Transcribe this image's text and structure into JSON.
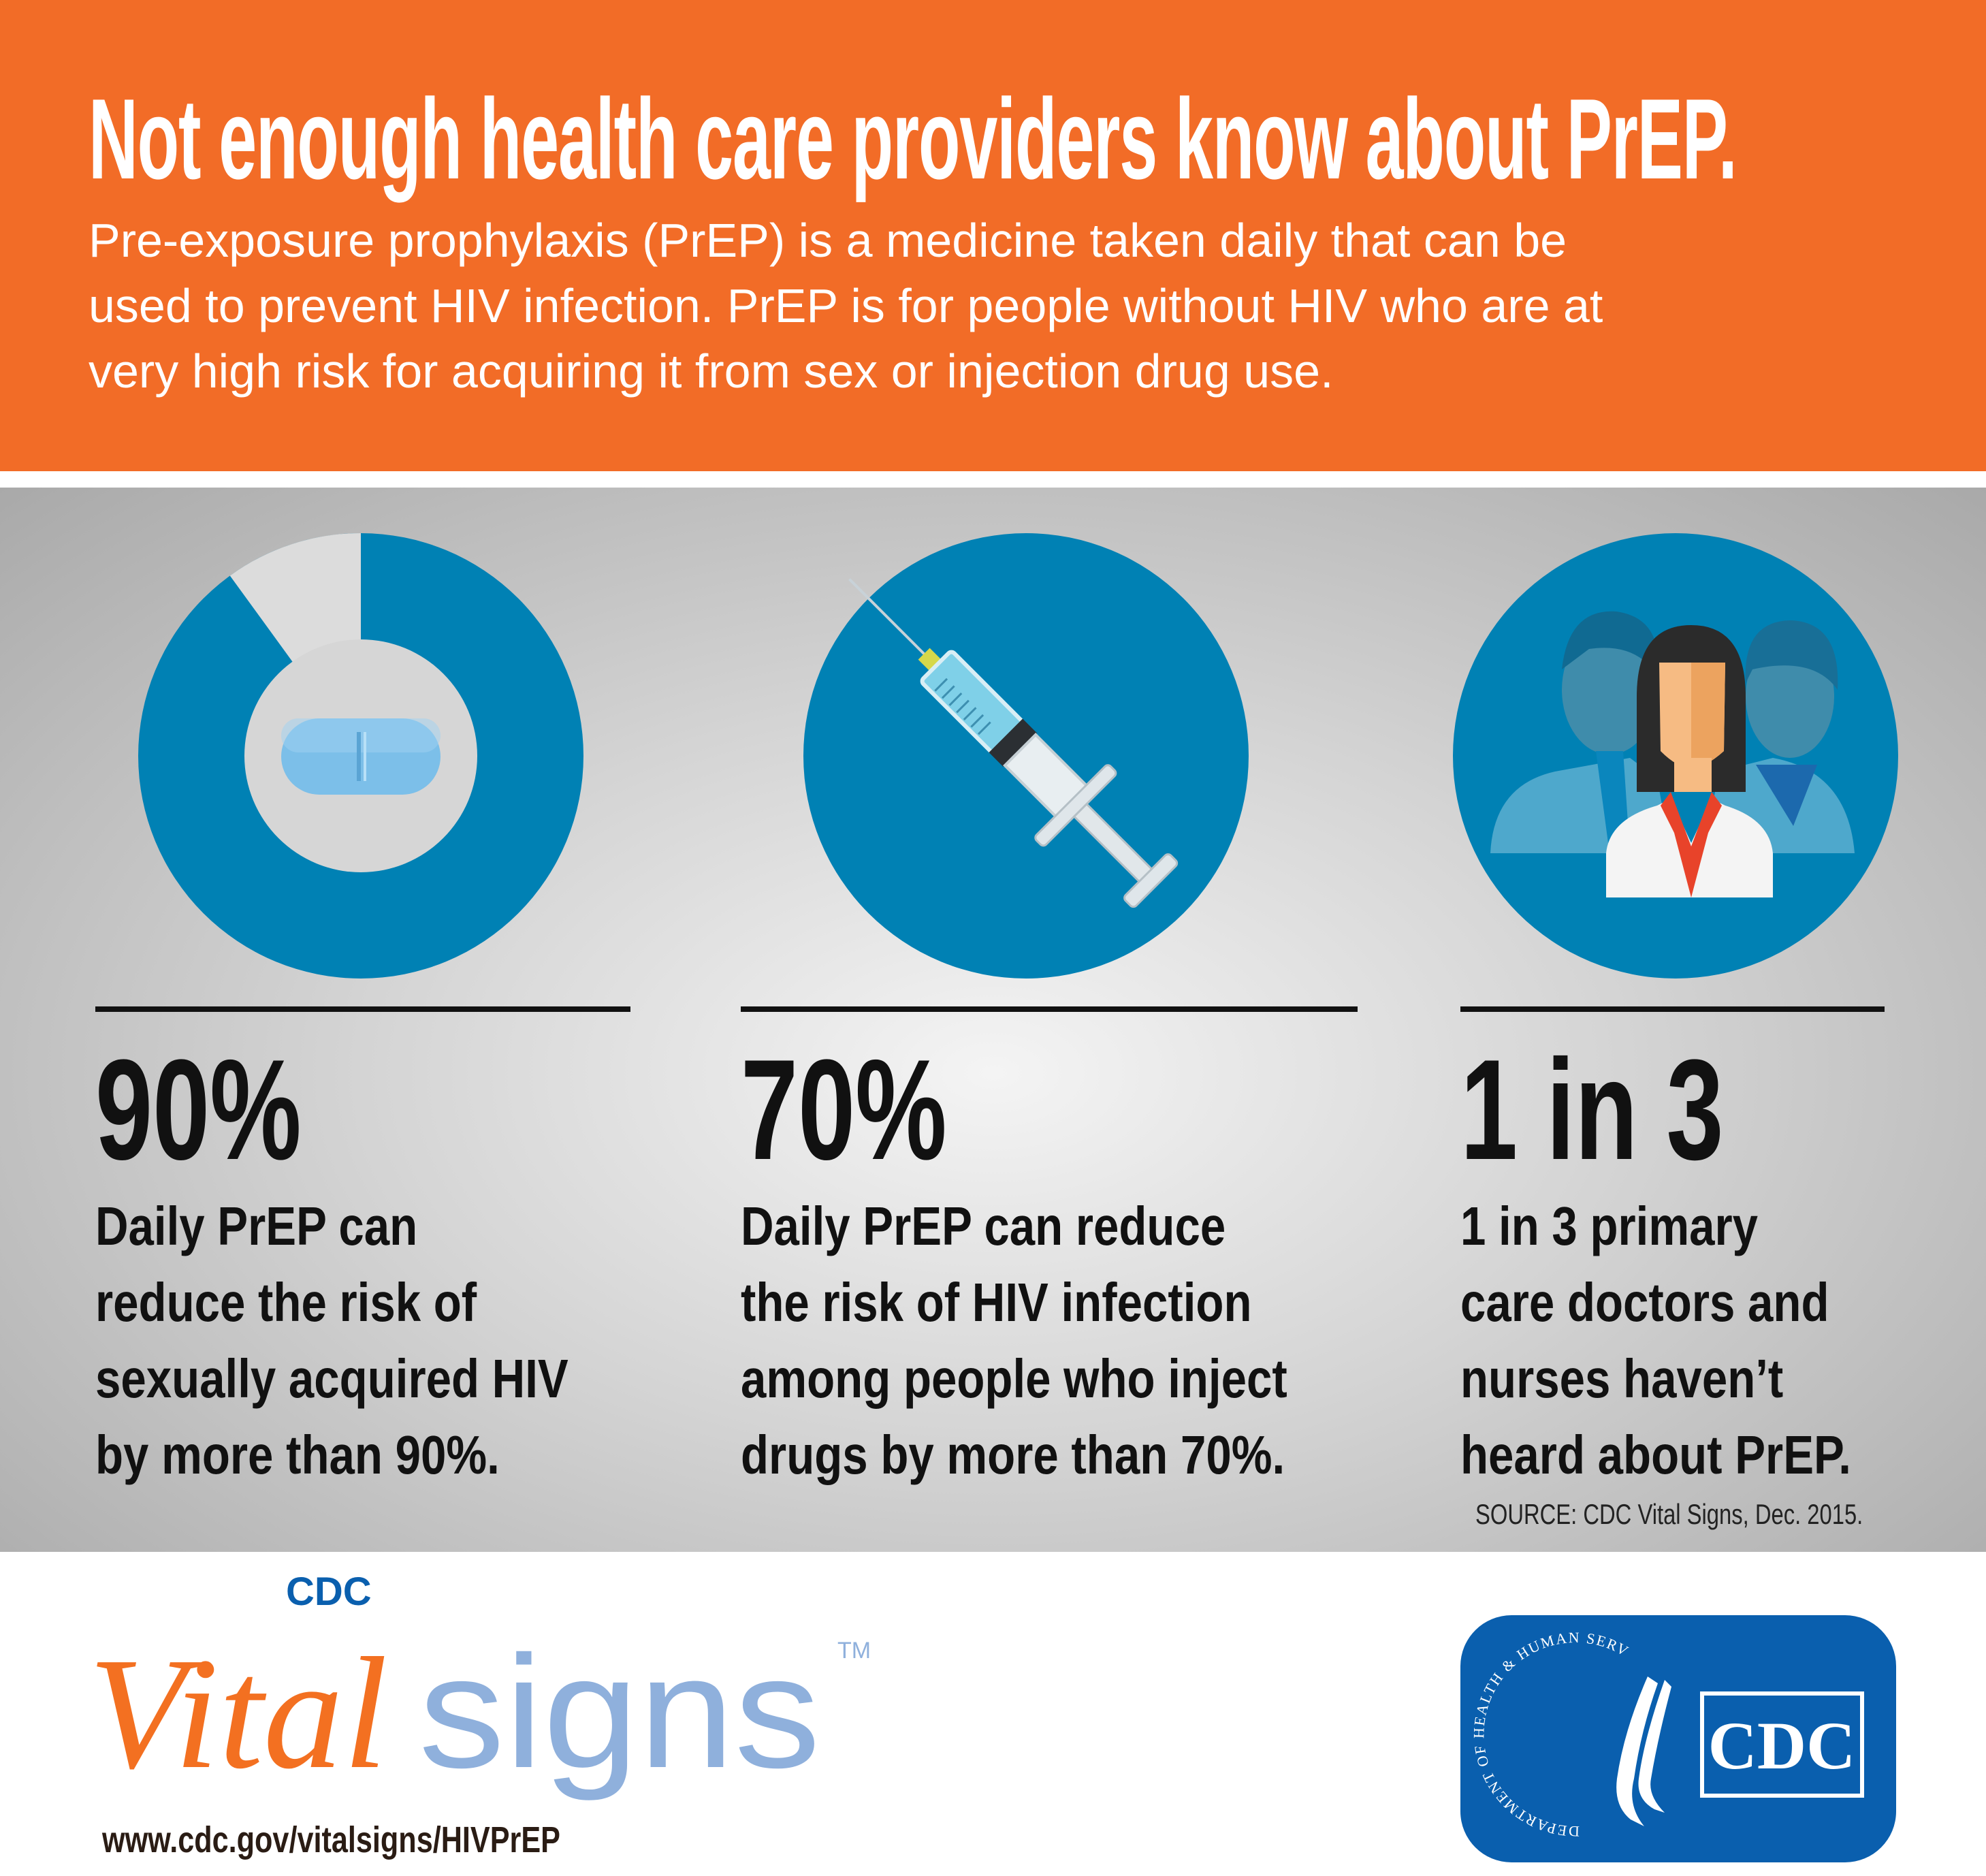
{
  "header": {
    "title": "Not enough health care providers know about PrEP.",
    "subtitle_lines": [
      "Pre-exposure prophylaxis (PrEP) is a medicine taken daily that can be",
      "used to prevent HIV infection. PrEP is for people without HIV who are at",
      "very high risk for acquiring it from sex or injection drug use."
    ]
  },
  "stats": [
    {
      "icon": "pill-donut-icon",
      "percent_shown": 90,
      "value": "90%",
      "lines": [
        "Daily PrEP can",
        "reduce the risk of",
        "sexually acquired HIV",
        "by more than 90%."
      ]
    },
    {
      "icon": "syringe-icon",
      "value": "70%",
      "lines": [
        "Daily PrEP can reduce",
        "the risk of HIV infection",
        "among people who inject",
        "drugs by more than 70%."
      ]
    },
    {
      "icon": "health-care-providers-icon",
      "value": "1 in 3",
      "lines": [
        "1 in 3 primary",
        "care doctors and",
        "nurses haven’t",
        "heard about PrEP."
      ]
    }
  ],
  "source": "SOURCE: CDC Vital Signs, Dec. 2015.",
  "footer": {
    "logo": {
      "cdc": "CDC",
      "vital": "Vital",
      "signs": "signs",
      "tm": "TM"
    },
    "url": "www.cdc.gov/vitalsigns/HIVPrEP",
    "hhs_seal_text": "DEPARTMENT OF HEALTH & HUMAN SERVICES·USA",
    "cdc_badge": "CDC"
  },
  "colors": {
    "header_orange": "#f26c27",
    "circle_blue": "#0081b4",
    "donut_remainder": "#dcdcdc",
    "pill_blue": "#7cbfe9",
    "vital_orange": "#f37021",
    "signs_blue": "#8fb0dc",
    "cdc_blue": "#0a5fae"
  }
}
